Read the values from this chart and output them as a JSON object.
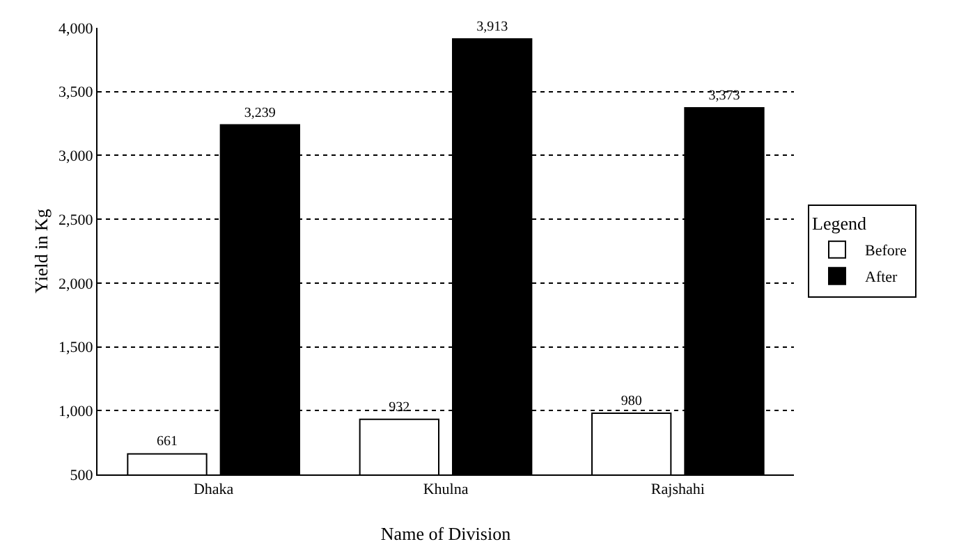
{
  "chart_data": {
    "type": "bar",
    "xlabel": "Name of Division",
    "ylabel": "Yield in Kg",
    "legend_title": "Legend",
    "categories": [
      "Dhaka",
      "Khulna",
      "Rajshahi"
    ],
    "series": [
      {
        "name": "Before",
        "color": "#ffffff",
        "values": [
          661,
          932,
          980
        ],
        "value_labels": [
          "661",
          "932",
          "980"
        ]
      },
      {
        "name": "After",
        "color": "#000000",
        "values": [
          3239,
          3913,
          3373
        ],
        "value_labels": [
          "3,239",
          "3,913",
          "3,373"
        ]
      }
    ],
    "ylim": [
      500,
      4000
    ],
    "yticks": [
      {
        "value": 500,
        "label": "500"
      },
      {
        "value": 1000,
        "label": "1,000"
      },
      {
        "value": 1500,
        "label": "1,500"
      },
      {
        "value": 2000,
        "label": "2,000"
      },
      {
        "value": 2500,
        "label": "2,500"
      },
      {
        "value": 3000,
        "label": "3,000"
      },
      {
        "value": 3500,
        "label": "3,500"
      },
      {
        "value": 4000,
        "label": "4,000"
      }
    ],
    "grid": "y",
    "legend": "right"
  }
}
